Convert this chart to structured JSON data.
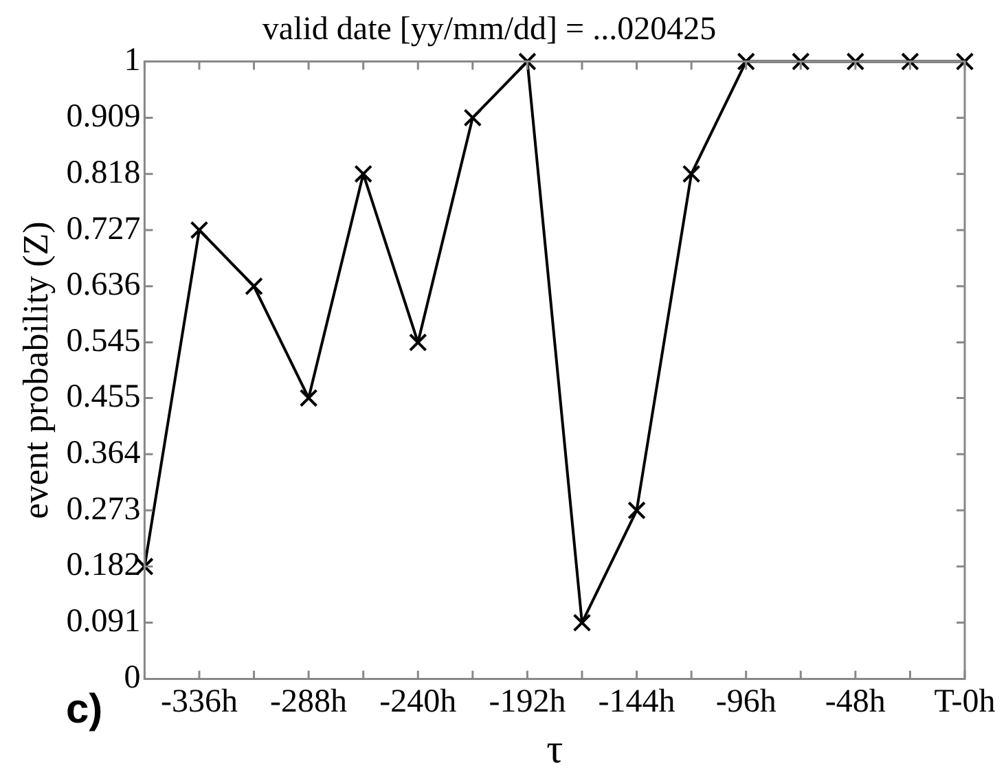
{
  "chart_data": {
    "type": "line",
    "title": "valid date [yy/mm/dd] = ...020425",
    "xlabel": "τ",
    "ylabel": "event probability (Z)",
    "annotations": [
      "c)"
    ],
    "x": [
      -360,
      -336,
      -312,
      -288,
      -264,
      -240,
      -216,
      -192,
      -168,
      -144,
      -120,
      -96,
      -72,
      -48,
      -24,
      0
    ],
    "series": [
      {
        "color": "#000000",
        "values": [
          0.182,
          0.727,
          0.636,
          0.455,
          0.818,
          0.545,
          0.909,
          1,
          0.091,
          0.273,
          0.818,
          1,
          1,
          1,
          1,
          1
        ]
      }
    ],
    "xlim": [
      -360,
      0
    ],
    "xticks": [
      {
        "value": -360,
        "label": null
      },
      {
        "value": -336,
        "label": "-336h"
      },
      {
        "value": -312,
        "label": null
      },
      {
        "value": -288,
        "label": "-288h"
      },
      {
        "value": -264,
        "label": null
      },
      {
        "value": -240,
        "label": "-240h"
      },
      {
        "value": -216,
        "label": null
      },
      {
        "value": -192,
        "label": "-192h"
      },
      {
        "value": -168,
        "label": null
      },
      {
        "value": -144,
        "label": "-144h"
      },
      {
        "value": -120,
        "label": null
      },
      {
        "value": -96,
        "label": "-96h"
      },
      {
        "value": -72,
        "label": null
      },
      {
        "value": -48,
        "label": "-48h"
      },
      {
        "value": -24,
        "label": null
      },
      {
        "value": 0,
        "label": "T-0h"
      }
    ],
    "ylim": [
      0,
      1
    ],
    "yticks": [
      0,
      0.091,
      0.182,
      0.273,
      0.364,
      0.455,
      0.545,
      0.636,
      0.727,
      0.818,
      0.909,
      1
    ],
    "grid": false,
    "legend": false,
    "marker": "cross",
    "line_style": "solid"
  }
}
